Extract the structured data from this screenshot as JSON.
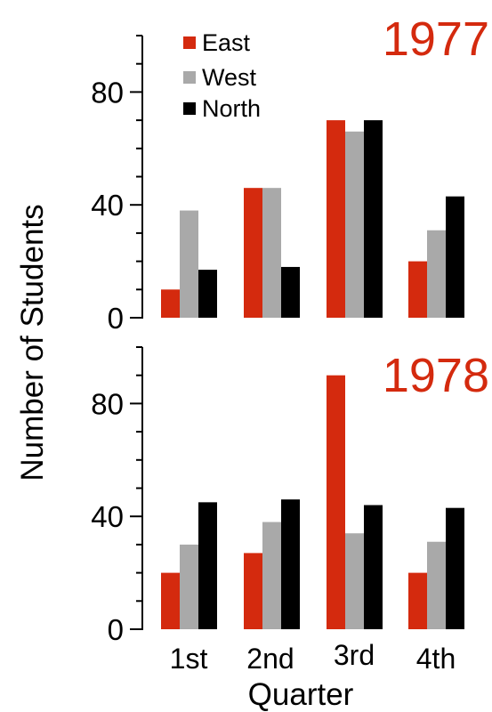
{
  "colors": {
    "East": "#d42a0e",
    "West": "#a9a9a9",
    "North": "#000000",
    "year": "#d42a0e"
  },
  "legend": [
    {
      "name": "East",
      "color": "#d42a0e"
    },
    {
      "name": "West",
      "color": "#a9a9a9"
    },
    {
      "name": "North",
      "color": "#000000"
    }
  ],
  "chart_data": [
    {
      "type": "bar",
      "annotation": "1977",
      "categories": [
        "1st",
        "2nd",
        "3rd",
        "4th"
      ],
      "series": [
        {
          "name": "East",
          "values": [
            10,
            46,
            70,
            20
          ]
        },
        {
          "name": "West",
          "values": [
            38,
            46,
            66,
            31
          ]
        },
        {
          "name": "North",
          "values": [
            17,
            18,
            70,
            43
          ]
        }
      ],
      "ylabel": "Number of Students",
      "yticks": [
        "0",
        "40",
        "80"
      ],
      "ylim": [
        0,
        100
      ],
      "grid": false,
      "legend_position": "top-left"
    },
    {
      "type": "bar",
      "annotation": "1978",
      "categories": [
        "1st",
        "2nd",
        "3rd",
        "4th"
      ],
      "series": [
        {
          "name": "East",
          "values": [
            20,
            27,
            90,
            20
          ]
        },
        {
          "name": "West",
          "values": [
            30,
            38,
            34,
            31
          ]
        },
        {
          "name": "North",
          "values": [
            45,
            46,
            44,
            43
          ]
        }
      ],
      "xlabel": "Quarter",
      "ylabel": "Number of Students",
      "yticks": [
        "0",
        "40",
        "80"
      ],
      "ylim": [
        0,
        100
      ],
      "grid": false
    }
  ]
}
